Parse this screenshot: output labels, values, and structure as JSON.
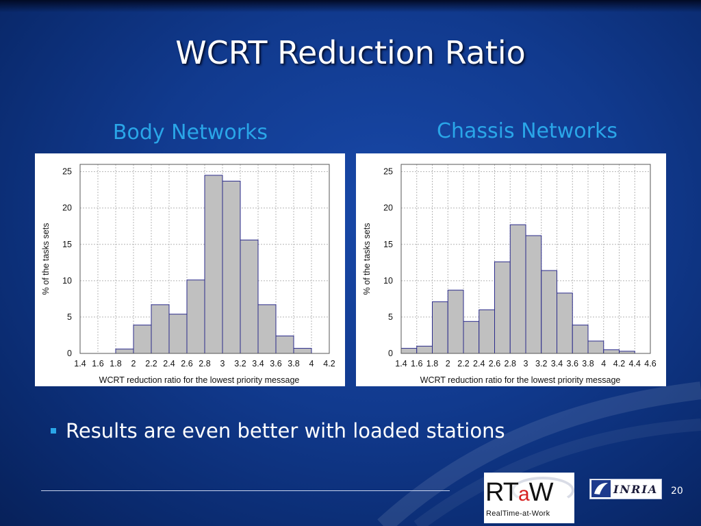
{
  "slide": {
    "title": "WCRT Reduction Ratio",
    "bullet": "Results are even better with loaded stations",
    "page_number": "20"
  },
  "logos": {
    "rtaw_main_1": "RT",
    "rtaw_main_2": "a",
    "rtaw_main_3": "W",
    "rtaw_sub": "RealTime-at-Work",
    "inria": "INRIA"
  },
  "colors": {
    "background": "#113a8e",
    "caption": "#2aa6e8",
    "bar_fill": "#c0c0c0",
    "bar_stroke": "#2a2a8a"
  },
  "chart_data": [
    {
      "type": "bar",
      "caption": "Body Networks",
      "xlabel": "WCRT reduction ratio for the lowest priority message",
      "ylabel": "% of the tasks sets",
      "xlim": [
        1.4,
        4.2
      ],
      "ylim": [
        0,
        26
      ],
      "xticks": [
        "1.4",
        "1.6",
        "1.8",
        "2",
        "2.2",
        "2.4",
        "2.6",
        "2.8",
        "3",
        "3.2",
        "3.4",
        "3.6",
        "3.8",
        "4",
        "4.2"
      ],
      "yticks": [
        "0",
        "5",
        "10",
        "15",
        "20",
        "25"
      ],
      "bin_width": 0.2,
      "bin_starts": [
        1.8,
        2.0,
        2.2,
        2.4,
        2.6,
        2.8,
        3.0,
        3.2,
        3.4,
        3.6,
        3.8
      ],
      "values": [
        0.6,
        3.9,
        6.7,
        5.4,
        10.1,
        24.5,
        23.7,
        15.6,
        6.7,
        2.4,
        0.7
      ],
      "grid": true
    },
    {
      "type": "bar",
      "caption": "Chassis Networks",
      "xlabel": "WCRT reduction ratio for the lowest priority message",
      "ylabel": "% of the tasks sets",
      "xlim": [
        1.4,
        4.6
      ],
      "ylim": [
        0,
        26
      ],
      "xticks": [
        "1.4",
        "1.6",
        "1.8",
        "2",
        "2.2",
        "2.4",
        "2.6",
        "2.8",
        "3",
        "3.2",
        "3.4",
        "3.6",
        "3.8",
        "4",
        "4.2",
        "4.4",
        "4.6"
      ],
      "yticks": [
        "0",
        "5",
        "10",
        "15",
        "20",
        "25"
      ],
      "bin_width": 0.2,
      "bin_starts": [
        1.4,
        1.6,
        1.8,
        2.0,
        2.2,
        2.4,
        2.6,
        2.8,
        3.0,
        3.2,
        3.4,
        3.6,
        3.8,
        4.0,
        4.2
      ],
      "values": [
        0.7,
        1.0,
        7.1,
        8.7,
        4.4,
        6.0,
        12.6,
        17.7,
        16.2,
        11.4,
        8.3,
        3.9,
        1.7,
        0.5,
        0.3
      ],
      "grid": true
    }
  ]
}
